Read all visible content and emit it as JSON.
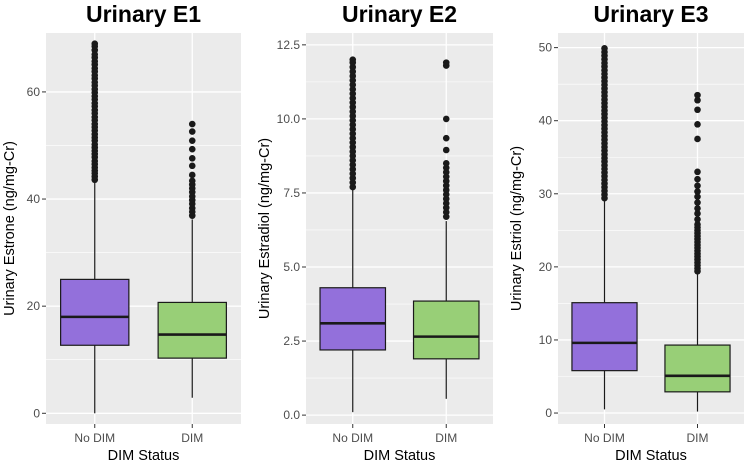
{
  "chart_data": [
    {
      "type": "boxplot",
      "title": "Urinary E1",
      "xlabel": "DIM Status",
      "ylabel": "Urinary Estrone (ng/mg-Cr)",
      "ylim": [
        -2,
        71
      ],
      "yticks": [
        0,
        20,
        40,
        60
      ],
      "yticklabels": [
        "0",
        "20",
        "40",
        "60"
      ],
      "categories": [
        "No DIM",
        "DIM"
      ],
      "boxes": [
        {
          "category": "No DIM",
          "color": "#9370DB",
          "whisker_low": 0,
          "q1": 12.7,
          "median": 18.0,
          "q3": 25.0,
          "whisker_high": 43.4,
          "outliers": [
            43.6,
            44.2,
            44.8,
            45.3,
            45.9,
            46.5,
            47.1,
            47.8,
            48.4,
            49.0,
            49.6,
            50.2,
            50.9,
            51.5,
            52.1,
            52.8,
            53.4,
            54.0,
            54.7,
            55.3,
            56.0,
            56.6,
            57.3,
            57.9,
            58.6,
            59.2,
            59.9,
            60.5,
            61.2,
            61.8,
            62.5,
            63.1,
            63.8,
            64.4,
            65.1,
            65.7,
            66.4,
            67.0,
            67.8,
            68.5,
            69.0
          ]
        },
        {
          "category": "DIM",
          "color": "#98CF77",
          "whisker_low": 2.9,
          "q1": 10.3,
          "median": 14.7,
          "q3": 20.7,
          "whisker_high": 36.2,
          "outliers": [
            36.9,
            37.6,
            38.3,
            39.1,
            39.8,
            40.5,
            41.3,
            42.0,
            42.7,
            43.4,
            44.5,
            46.2,
            47.6,
            49.3,
            50.9,
            52.6,
            54.0
          ]
        }
      ]
    },
    {
      "type": "boxplot",
      "title": "Urinary E2",
      "xlabel": "DIM Status",
      "ylabel": "Urinary Estradiol (ng/mg-Cr)",
      "ylim": [
        -0.3,
        12.9
      ],
      "yticks": [
        0.0,
        2.5,
        5.0,
        7.5,
        10.0,
        12.5
      ],
      "yticklabels": [
        "0.0",
        "2.5",
        "5.0",
        "7.5",
        "10.0",
        "12.5"
      ],
      "categories": [
        "No DIM",
        "DIM"
      ],
      "boxes": [
        {
          "category": "No DIM",
          "color": "#9370DB",
          "whisker_low": 0.1,
          "q1": 2.2,
          "median": 3.1,
          "q3": 4.3,
          "whisker_high": 7.6,
          "outliers": [
            7.7,
            7.85,
            8.0,
            8.15,
            8.3,
            8.45,
            8.6,
            8.75,
            8.9,
            9.05,
            9.2,
            9.35,
            9.5,
            9.65,
            9.8,
            9.95,
            10.1,
            10.25,
            10.4,
            10.55,
            10.7,
            10.85,
            11.0,
            11.15,
            11.3,
            11.45,
            11.6,
            11.75,
            11.9,
            12.0
          ]
        },
        {
          "category": "DIM",
          "color": "#98CF77",
          "whisker_low": 0.55,
          "q1": 1.9,
          "median": 2.65,
          "q3": 3.85,
          "whisker_high": 6.55,
          "outliers": [
            6.7,
            6.85,
            7.0,
            7.15,
            7.3,
            7.45,
            7.6,
            7.75,
            7.9,
            8.05,
            8.2,
            8.35,
            8.5,
            8.95,
            9.35,
            10.0,
            11.8,
            11.9
          ]
        }
      ]
    },
    {
      "type": "boxplot",
      "title": "Urinary E3",
      "xlabel": "DIM Status",
      "ylabel": "Urinary Estriol (ng/mg-Cr)",
      "ylim": [
        -1.5,
        52
      ],
      "yticks": [
        0,
        10,
        20,
        30,
        40,
        50
      ],
      "yticklabels": [
        "0",
        "10",
        "20",
        "30",
        "40",
        "50"
      ],
      "categories": [
        "No DIM",
        "DIM"
      ],
      "boxes": [
        {
          "category": "No DIM",
          "color": "#9370DB",
          "whisker_low": 0.5,
          "q1": 5.8,
          "median": 9.6,
          "q3": 15.1,
          "whisker_high": 29.0,
          "outliers": [
            29.4,
            29.9,
            30.4,
            30.9,
            31.4,
            31.9,
            32.4,
            32.9,
            33.4,
            33.9,
            34.4,
            34.9,
            35.4,
            35.9,
            36.4,
            36.9,
            37.4,
            37.9,
            38.4,
            38.9,
            39.4,
            39.9,
            40.4,
            40.9,
            41.4,
            41.9,
            42.4,
            42.9,
            43.4,
            43.9,
            44.4,
            44.9,
            45.4,
            45.9,
            46.4,
            46.9,
            47.4,
            47.9,
            48.4,
            48.9,
            49.4,
            49.9
          ]
        },
        {
          "category": "DIM",
          "color": "#98CF77",
          "whisker_low": 0.2,
          "q1": 2.9,
          "median": 5.1,
          "q3": 9.3,
          "whisker_high": 19.0,
          "outliers": [
            19.4,
            19.8,
            20.2,
            20.6,
            21.0,
            21.4,
            21.8,
            22.2,
            22.6,
            23.0,
            23.4,
            23.8,
            24.2,
            24.6,
            25.0,
            25.4,
            25.8,
            26.5,
            27.3,
            28.0,
            28.8,
            29.6,
            30.3,
            31.1,
            32.0,
            33.0,
            37.5,
            39.5,
            41.5,
            42.8,
            43.5
          ]
        }
      ]
    }
  ]
}
